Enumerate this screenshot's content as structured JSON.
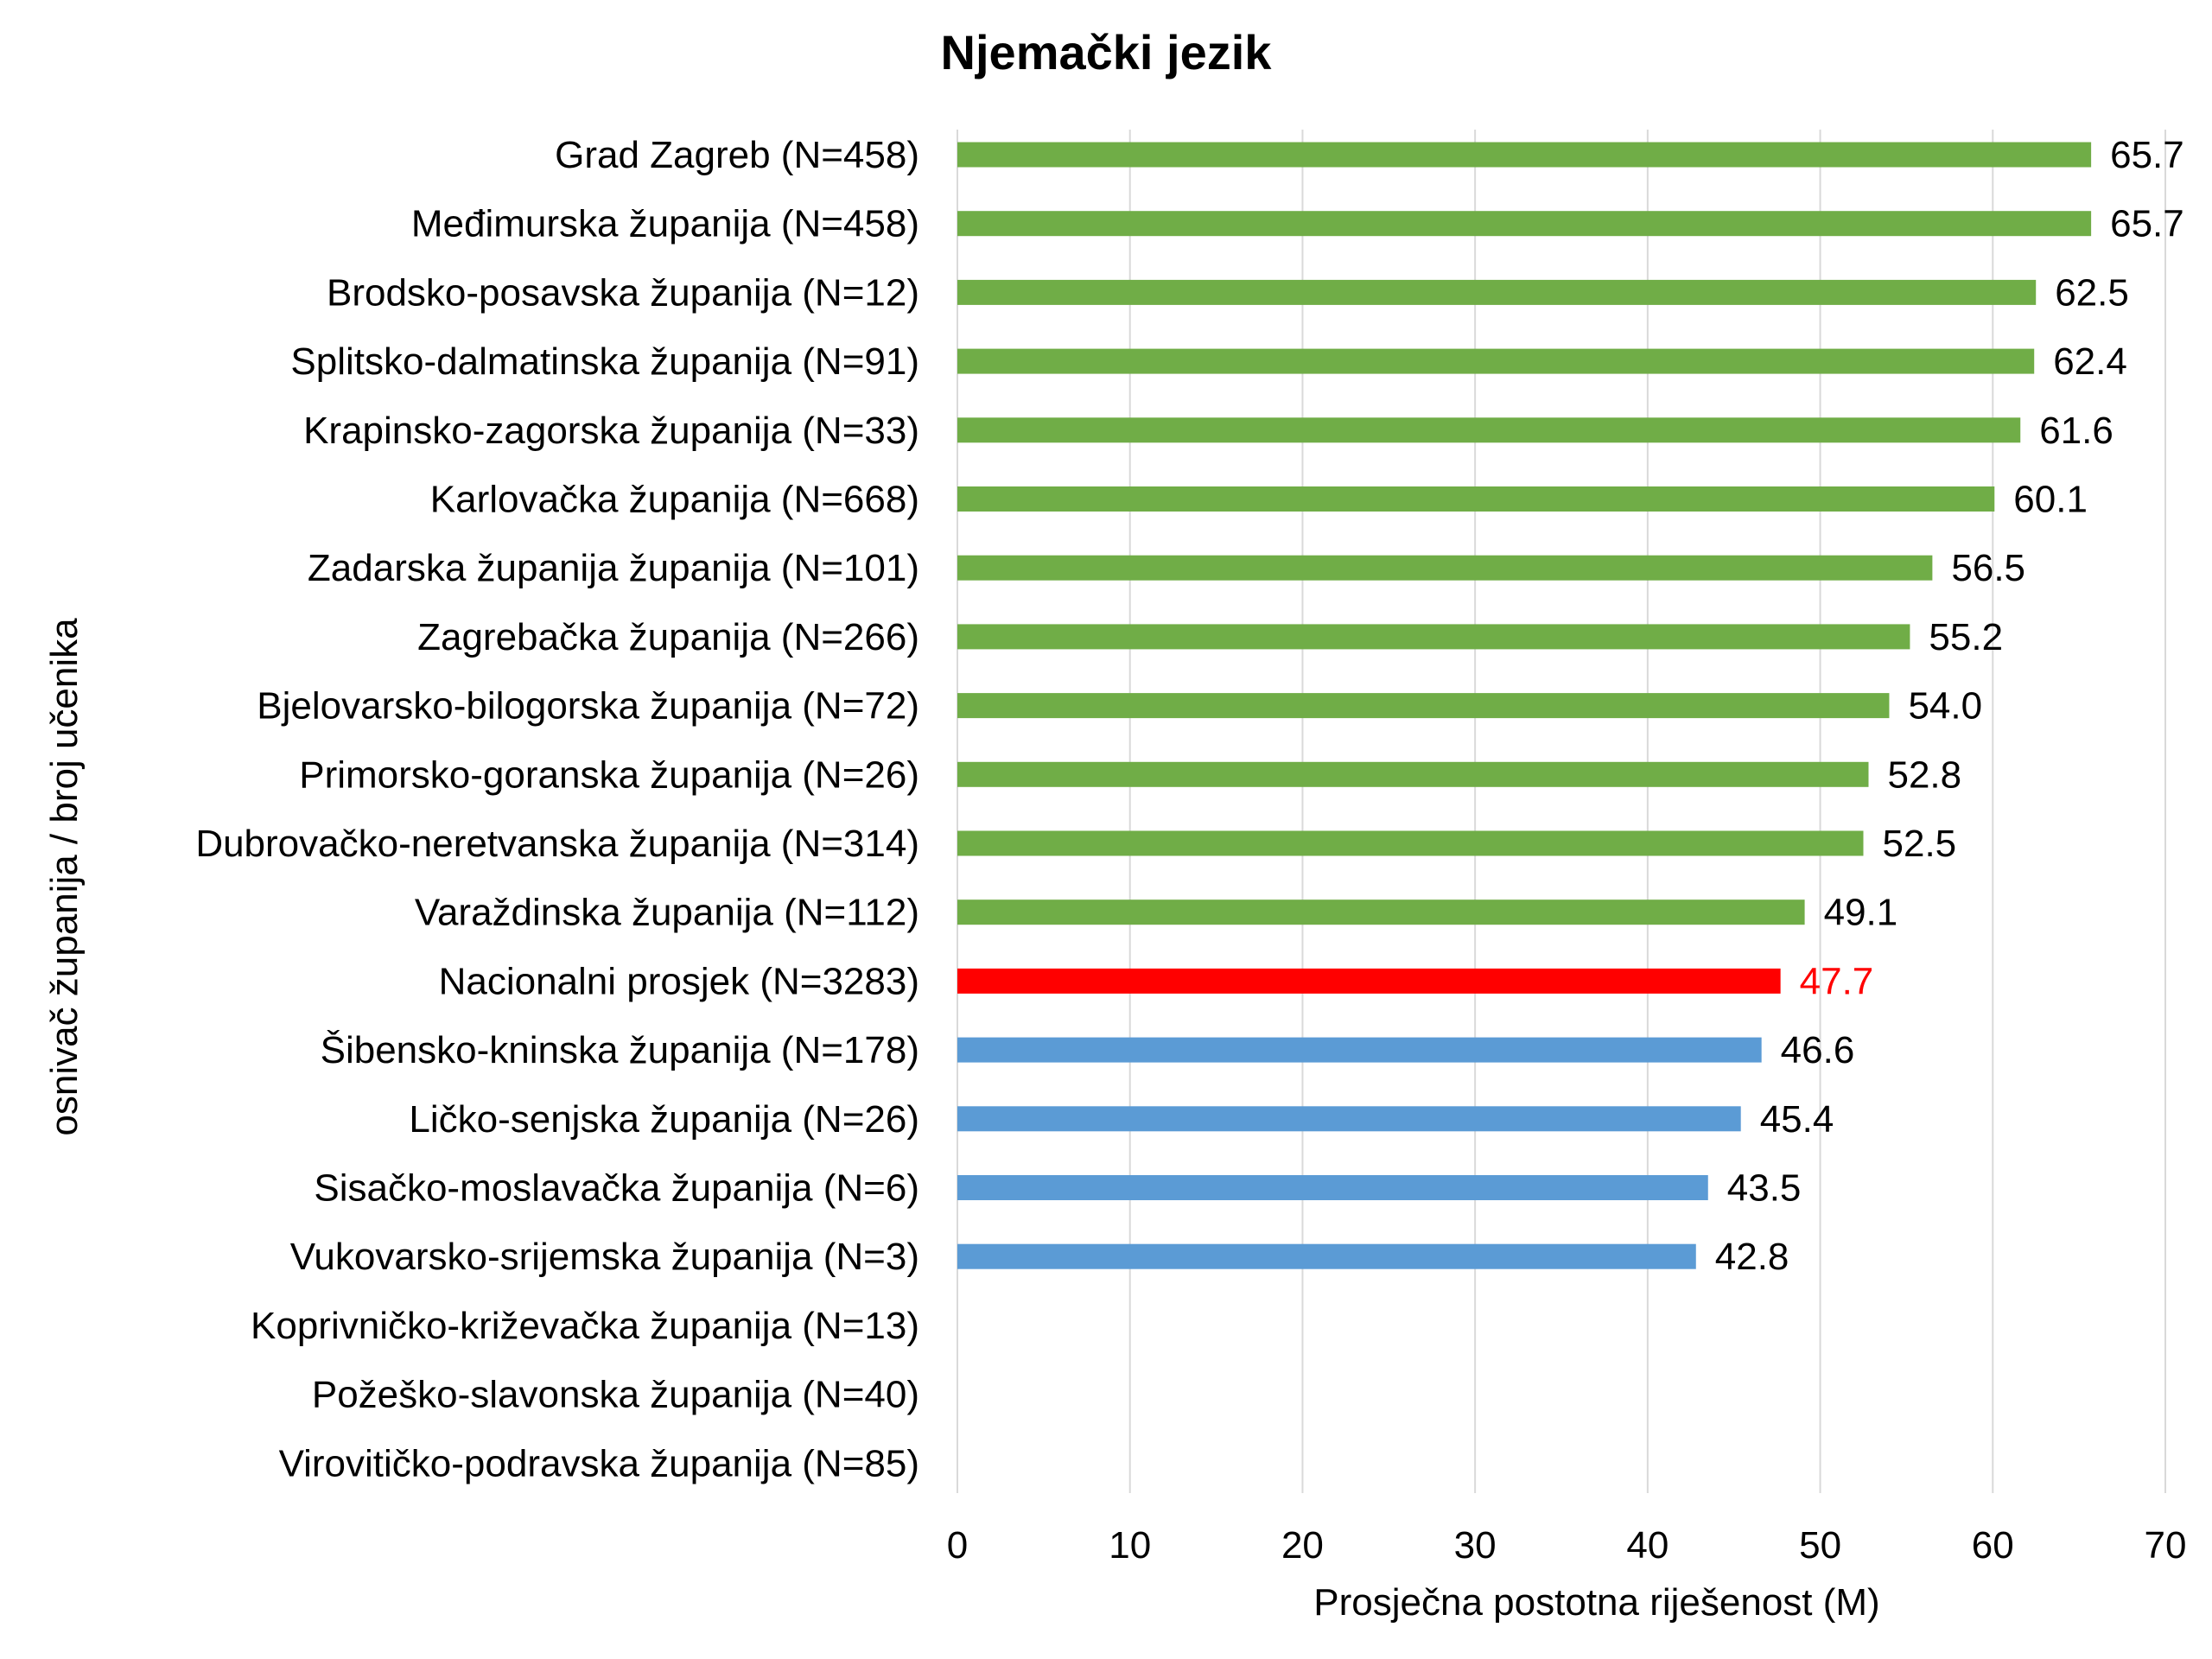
{
  "chart_data": {
    "type": "bar",
    "orientation": "horizontal",
    "title": "Njemački jezik",
    "xlabel": "Prosječna postotna riješenost (M)",
    "ylabel": "osnivač županija / broj učenika",
    "xlim": [
      0,
      70
    ],
    "xticks": [
      0,
      10,
      20,
      30,
      40,
      50,
      60,
      70
    ],
    "grid": "vertical",
    "legend": "none",
    "colors": {
      "above": "#70AD47",
      "national": "#FF0000",
      "below": "#5B9BD5",
      "national_label": "#FF0000",
      "label": "#000000",
      "grid": "#D9D9D9"
    },
    "categories": [
      "Grad Zagreb (N=458)",
      "Međimurska županija (N=458)",
      "Brodsko-posavska županija (N=12)",
      "Splitsko-dalmatinska županija (N=91)",
      "Krapinsko-zagorska županija (N=33)",
      "Karlovačka županija (N=668)",
      "Zadarska županija županija (N=101)",
      "Zagrebačka županija (N=266)",
      "Bjelovarsko-bilogorska županija (N=72)",
      "Primorsko-goranska županija (N=26)",
      "Dubrovačko-neretvanska županija (N=314)",
      "Varaždinska županija (N=112)",
      "Nacionalni prosjek (N=3283)",
      "Šibensko-kninska županija (N=178)",
      "Ličko-senjska županija (N=26)",
      "Sisačko-moslavačka županija (N=6)",
      "Vukovarsko-srijemska županija (N=3)",
      "Koprivničko-križevačka županija (N=13)",
      "Požeško-slavonska županija (N=40)",
      "Virovitičko-podravska županija (N=85)"
    ],
    "values": [
      65.7,
      65.7,
      62.5,
      62.4,
      61.6,
      60.1,
      56.5,
      55.2,
      54.0,
      52.8,
      52.5,
      49.1,
      47.7,
      46.6,
      45.4,
      43.5,
      42.8,
      null,
      null,
      null
    ],
    "value_labels": [
      "65.7",
      "65.7",
      "62.5",
      "62.4",
      "61.6",
      "60.1",
      "56.5",
      "55.2",
      "54.0",
      "52.8",
      "52.5",
      "49.1",
      "47.7",
      "46.6",
      "45.4",
      "43.5",
      "42.8",
      "",
      "",
      ""
    ],
    "groups": [
      "above",
      "above",
      "above",
      "above",
      "above",
      "above",
      "above",
      "above",
      "above",
      "above",
      "above",
      "above",
      "national",
      "below",
      "below",
      "below",
      "below",
      "none",
      "none",
      "none"
    ]
  }
}
